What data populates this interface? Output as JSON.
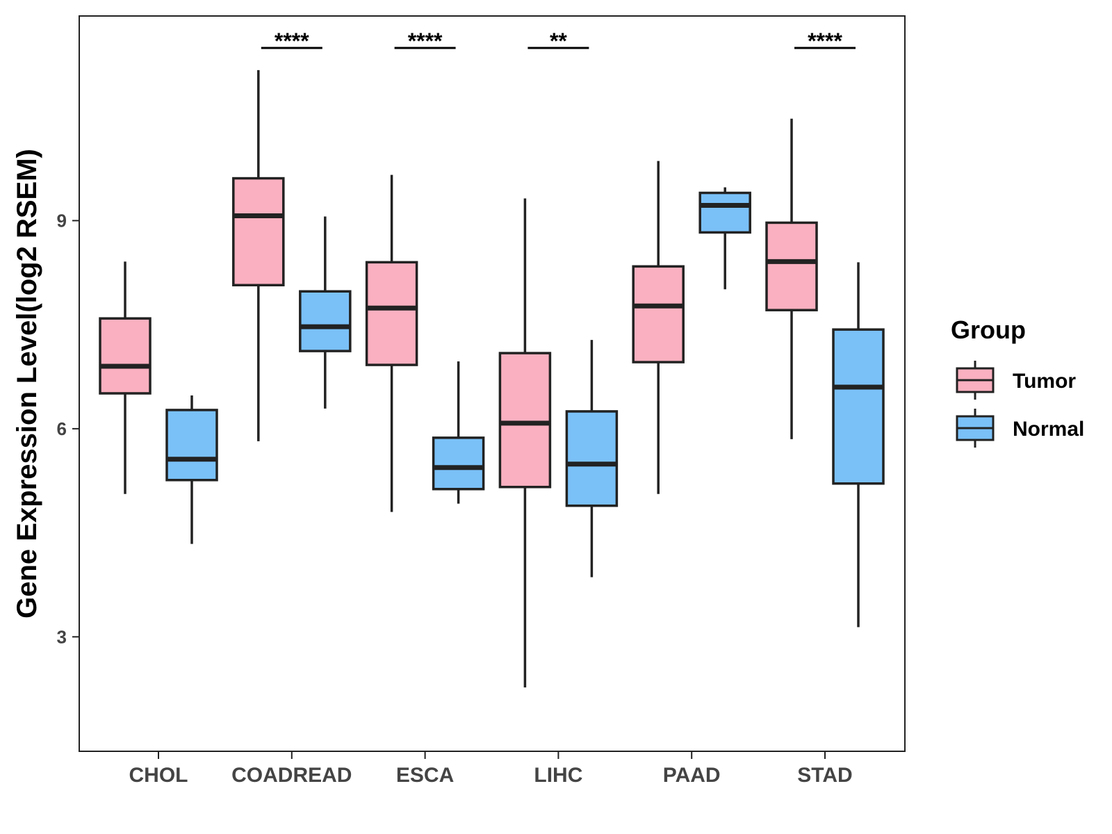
{
  "chart_data": {
    "type": "boxplot",
    "title": "",
    "xlabel": "",
    "ylabel": "Gene Expression Level(log2 RSEM)",
    "ylim": [
      1.35,
      11.95
    ],
    "yticks": [
      3,
      6,
      9
    ],
    "ytick_labels": [
      "3",
      "6",
      "9"
    ],
    "categories": [
      "CHOL",
      "COADREAD",
      "ESCA",
      "LIHC",
      "PAAD",
      "STAD"
    ],
    "legend": {
      "title": "Group",
      "position": "right",
      "entries": [
        {
          "name": "Tumor",
          "color": "#FAB0C0"
        },
        {
          "name": "Normal",
          "color": "#7AC1F8"
        }
      ]
    },
    "series": [
      {
        "name": "Tumor",
        "color": "#FAB0C0",
        "boxes": [
          {
            "whisker_low": 5.06,
            "q1": 6.51,
            "median": 6.9,
            "q3": 7.59,
            "whisker_high": 8.41
          },
          {
            "whisker_low": 5.82,
            "q1": 8.07,
            "median": 9.07,
            "q3": 9.61,
            "whisker_high": 11.17
          },
          {
            "whisker_low": 4.8,
            "q1": 6.92,
            "median": 7.74,
            "q3": 8.4,
            "whisker_high": 9.66
          },
          {
            "whisker_low": 2.27,
            "q1": 5.16,
            "median": 6.08,
            "q3": 7.09,
            "whisker_high": 9.32
          },
          {
            "whisker_low": 5.06,
            "q1": 6.96,
            "median": 7.77,
            "q3": 8.34,
            "whisker_high": 9.86
          },
          {
            "whisker_low": 5.85,
            "q1": 7.71,
            "median": 8.41,
            "q3": 8.97,
            "whisker_high": 10.47
          }
        ]
      },
      {
        "name": "Normal",
        "color": "#7AC1F8",
        "boxes": [
          {
            "whisker_low": 4.34,
            "q1": 5.26,
            "median": 5.56,
            "q3": 6.27,
            "whisker_high": 6.48
          },
          {
            "whisker_low": 6.29,
            "q1": 7.12,
            "median": 7.47,
            "q3": 7.98,
            "whisker_high": 9.06
          },
          {
            "whisker_low": 4.92,
            "q1": 5.13,
            "median": 5.44,
            "q3": 5.87,
            "whisker_high": 6.97
          },
          {
            "whisker_low": 3.86,
            "q1": 4.89,
            "median": 5.49,
            "q3": 6.25,
            "whisker_high": 7.28
          },
          {
            "whisker_low": 8.01,
            "q1": 8.83,
            "median": 9.22,
            "q3": 9.4,
            "whisker_high": 9.48
          },
          {
            "whisker_low": 3.14,
            "q1": 5.21,
            "median": 6.6,
            "q3": 7.43,
            "whisker_high": 8.4
          }
        ]
      }
    ],
    "significance": [
      {
        "category": "CHOL",
        "label": ""
      },
      {
        "category": "COADREAD",
        "label": "****"
      },
      {
        "category": "ESCA",
        "label": "****"
      },
      {
        "category": "LIHC",
        "label": "**"
      },
      {
        "category": "PAAD",
        "label": ""
      },
      {
        "category": "STAD",
        "label": "****"
      }
    ],
    "significance_y": 11.62
  }
}
